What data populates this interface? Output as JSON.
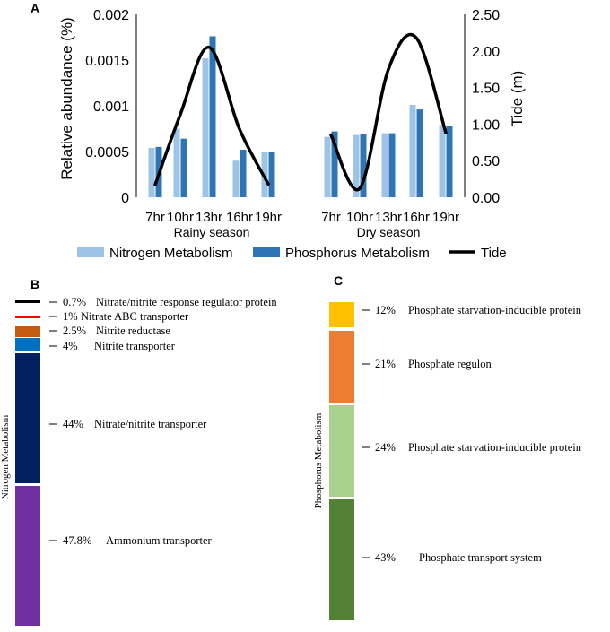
{
  "panels": {
    "a": {
      "letter": "A"
    },
    "b": {
      "letter": "B"
    },
    "c": {
      "letter": "C"
    }
  },
  "colors": {
    "nitrogen": "#9dc3e6",
    "phosphorus": "#2e75b6",
    "tide": "#000000"
  },
  "chart_data": [
    {
      "type": "bar+line",
      "title": "",
      "ylabel": "Relative abundance (%)",
      "y2label": "Tide (m)",
      "ylim": [
        0,
        0.002
      ],
      "y2lim": [
        0,
        2.5
      ],
      "yticks": [
        "0",
        "0.0005",
        "0.001",
        "0.0015",
        "0.002"
      ],
      "y2ticks": [
        "0.00",
        "0.50",
        "1.00",
        "1.50",
        "2.00",
        "2.50"
      ],
      "groups": [
        {
          "label": "Rainy season",
          "categories": [
            "7hr",
            "10hr",
            "13hr",
            "16hr",
            "19hr"
          ]
        },
        {
          "label": "Dry season",
          "categories": [
            "7hr",
            "10hr",
            "13hr",
            "16hr",
            "19hr"
          ]
        }
      ],
      "series": [
        {
          "name": "Nitrogen Metabolism",
          "kind": "bar",
          "axis": "left",
          "values": [
            0.00054,
            0.00075,
            0.00152,
            0.0004,
            0.00049,
            0.00066,
            0.00068,
            0.0007,
            0.00101,
            0.00079
          ]
        },
        {
          "name": "Phosphorus Metabolism",
          "kind": "bar",
          "axis": "left",
          "values": [
            0.00055,
            0.00064,
            0.00176,
            0.00052,
            0.0005,
            0.00072,
            0.00069,
            0.0007,
            0.00096,
            0.00078
          ]
        },
        {
          "name": "Tide",
          "kind": "line",
          "axis": "right",
          "values": [
            0.17,
            1.13,
            2.05,
            0.93,
            0.18,
            0.85,
            0.12,
            1.75,
            2.18,
            0.88
          ]
        }
      ],
      "legend": [
        "Nitrogen Metabolism",
        "Phosphorus Metabolism",
        "Tide"
      ]
    },
    {
      "type": "stacked-bar",
      "ylabel": "Nitrogen Metabolism",
      "segments": [
        {
          "pct": "0.7%",
          "value": 0.7,
          "label": "Nitrate/nitrite response regulator protein",
          "color": "#000000"
        },
        {
          "pct": "1%",
          "value": 1.0,
          "label": "Nitrate ABC transporter",
          "color": "#ff0000"
        },
        {
          "pct": "2.5%",
          "value": 2.5,
          "label": "Nitrite reductase",
          "color": "#c55a11"
        },
        {
          "pct": "4%",
          "value": 4.0,
          "label": "Nitrite transporter",
          "color": "#0070c0"
        },
        {
          "pct": "44%",
          "value": 44.0,
          "label": "Nitrate/nitrite transporter",
          "color": "#002060"
        },
        {
          "pct": "47.8%",
          "value": 47.8,
          "label": "Ammonium transporter",
          "color": "#7030a0"
        }
      ]
    },
    {
      "type": "stacked-bar",
      "ylabel": "Phosphorus Metabolism",
      "segments": [
        {
          "pct": "12%",
          "value": 12,
          "label": "Phosphate starvation-inducible protein",
          "color": "#ffc000"
        },
        {
          "pct": "21%",
          "value": 21,
          "label": "Phosphate regulon",
          "color": "#ed7d31"
        },
        {
          "pct": "24%",
          "value": 24,
          "label": "Phosphate starvation-inducible protein",
          "color": "#a9d18e"
        },
        {
          "pct": "43%",
          "value": 43,
          "label": "Phosphate transport system",
          "color": "#548235"
        }
      ]
    }
  ]
}
